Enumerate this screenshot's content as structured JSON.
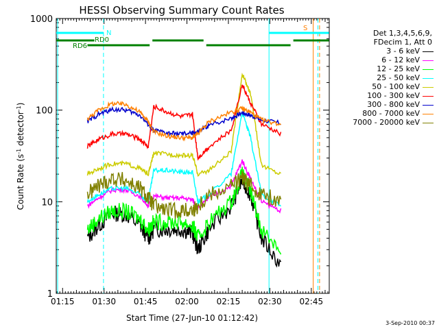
{
  "chart_data": {
    "type": "line",
    "title": "HESSI Observing Summary Count Rates",
    "xlabel": "Start Time (27-Jun-10 01:12:42)",
    "ylabel_main": "Count Rate (s",
    "ylabel_sup1": "-1",
    "ylabel_mid": " detector",
    "ylabel_sup2": "-1",
    "ylabel_end": ")",
    "yscale": "log",
    "ylim": [
      1,
      1000
    ],
    "xlim_minutes": [
      72.7,
      171.5
    ],
    "yticks": [
      1,
      10,
      100,
      1000
    ],
    "ytick_labels": [
      "1",
      "10",
      "100",
      "1000"
    ],
    "xticks_minutes": [
      75,
      90,
      105,
      120,
      135,
      150,
      165
    ],
    "xtick_labels": [
      "01:15",
      "01:30",
      "01:45",
      "02:00",
      "02:15",
      "02:30",
      "02:45"
    ],
    "legend_header": [
      "Det 1,3,4,5,6,9,",
      "FDecim 1, Att 0"
    ],
    "series": [
      {
        "name": "3 - 6 keV",
        "color": "#000000",
        "values": [
          4,
          5.5,
          7.5,
          7.2,
          5.5,
          4,
          5,
          5,
          5,
          4.5,
          3,
          5,
          9,
          17,
          12,
          4,
          2
        ]
      },
      {
        "name": "6 - 12 keV",
        "color": "#ff00ff",
        "values": [
          9,
          11,
          13.5,
          13.5,
          11.5,
          9,
          11.5,
          11,
          11,
          10.5,
          8.5,
          11,
          15,
          28,
          18,
          10,
          8
        ]
      },
      {
        "name": "12 - 25 keV",
        "color": "#00ff00",
        "values": [
          5,
          6.5,
          8,
          7.8,
          6.5,
          5,
          6,
          6,
          6,
          5.5,
          4,
          6,
          10,
          20,
          13,
          5,
          3
        ]
      },
      {
        "name": "25 - 50 keV",
        "color": "#00ffff",
        "values": [
          10,
          12,
          14,
          14,
          12,
          10,
          22,
          22,
          21,
          21,
          10,
          12,
          20,
          95,
          50,
          12,
          9
        ]
      },
      {
        "name": "50 - 100 keV",
        "color": "#cccc00",
        "values": [
          20,
          23,
          26,
          26,
          23,
          20,
          34,
          33,
          32,
          32,
          20,
          22,
          35,
          250,
          150,
          25,
          20
        ]
      },
      {
        "name": "100 - 300 keV",
        "color": "#ff0000",
        "values": [
          40,
          48,
          55,
          55,
          48,
          40,
          110,
          95,
          85,
          90,
          30,
          40,
          60,
          190,
          120,
          70,
          55
        ]
      },
      {
        "name": "300 - 800 keV",
        "color": "#0000cc",
        "values": [
          75,
          90,
          102,
          100,
          88,
          70,
          60,
          56,
          55,
          56,
          58,
          68,
          82,
          94,
          88,
          78,
          72
        ]
      },
      {
        "name": "800 - 7000 keV",
        "color": "#ff8000",
        "values": [
          80,
          100,
          118,
          115,
          95,
          75,
          58,
          52,
          50,
          50,
          55,
          75,
          95,
          104,
          95,
          78,
          70
        ]
      },
      {
        "name": "7000 - 20000 keV",
        "color": "#808000",
        "values": [
          12,
          15,
          18,
          17,
          14,
          11,
          9,
          8,
          8,
          8,
          9,
          12,
          15,
          18,
          15,
          12,
          10
        ]
      }
    ],
    "series_x_minutes": [
      84,
      88,
      93,
      98,
      103,
      106,
      108,
      113,
      118,
      122,
      124,
      128,
      136,
      140,
      143,
      147,
      154
    ],
    "flag_labels": {
      "n": "N",
      "rd0": "RD0",
      "rd6": "RD6",
      "s": "S"
    }
  },
  "footer": "3-Sep-2010 00:37",
  "colors": {
    "background": "#ffffff",
    "axis": "#000000"
  }
}
